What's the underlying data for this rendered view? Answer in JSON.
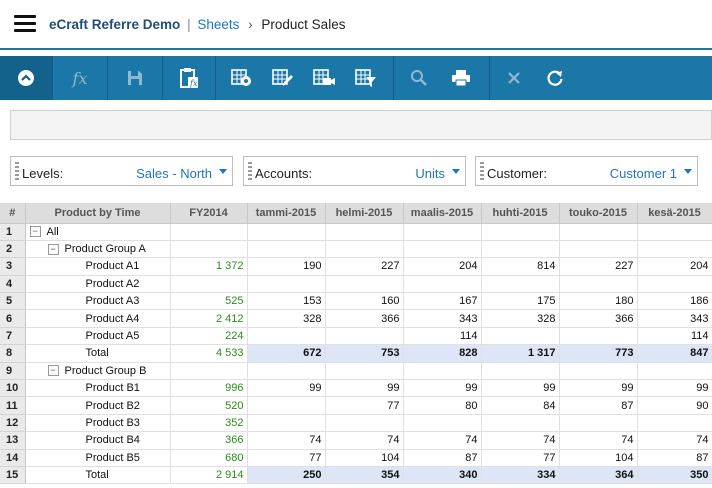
{
  "header": {
    "app_name": "eCraft Referre Demo",
    "separator": "|",
    "breadcrumb_sheets": "Sheets",
    "breadcrumb_arrow": "›",
    "current_sheet": "Product Sales"
  },
  "toolbar": {
    "buttons": [
      {
        "name": "collapse",
        "icon": "chevron-up-icon"
      },
      {
        "name": "formula",
        "icon": "fx-icon",
        "label": "fx"
      },
      {
        "name": "save",
        "icon": "floppy-disk-icon"
      },
      {
        "name": "paste-formula",
        "icon": "clipboard-icon"
      },
      {
        "name": "sheet-settings",
        "icon": "grid-gear-icon"
      },
      {
        "name": "sheet-edit",
        "icon": "grid-pencil-icon"
      },
      {
        "name": "sheet-video",
        "icon": "grid-camera-icon"
      },
      {
        "name": "sheet-filter",
        "icon": "grid-filter-icon"
      },
      {
        "name": "zoom",
        "icon": "magnifier-icon"
      },
      {
        "name": "print",
        "icon": "printer-icon"
      },
      {
        "name": "close",
        "icon": "close-icon"
      },
      {
        "name": "refresh",
        "icon": "refresh-icon"
      }
    ]
  },
  "selectors": [
    {
      "label": "Levels:",
      "value": "Sales - North"
    },
    {
      "label": "Accounts:",
      "value": "Units"
    },
    {
      "label": "Customer:",
      "value": "Customer 1"
    }
  ],
  "grid": {
    "columns": [
      "#",
      "Product by Time",
      "FY2014",
      "tammi-2015",
      "helmi-2015",
      "maalis-2015",
      "huhti-2015",
      "touko-2015",
      "kesä-2015"
    ],
    "rows": [
      {
        "n": "1",
        "label": "All",
        "level": 0,
        "toggle": "−",
        "total": false,
        "values": [
          "",
          "",
          "",
          "",
          "",
          "",
          ""
        ]
      },
      {
        "n": "2",
        "label": "Product Group A",
        "level": 1,
        "toggle": "−",
        "total": false,
        "values": [
          "",
          "",
          "",
          "",
          "",
          "",
          ""
        ]
      },
      {
        "n": "3",
        "label": "Product A1",
        "level": 2,
        "total": false,
        "values": [
          "1 372",
          "190",
          "227",
          "204",
          "814",
          "227",
          "204"
        ]
      },
      {
        "n": "4",
        "label": "Product A2",
        "level": 2,
        "total": false,
        "values": [
          "",
          "",
          "",
          "",
          "",
          "",
          ""
        ]
      },
      {
        "n": "5",
        "label": "Product A3",
        "level": 2,
        "total": false,
        "values": [
          "525",
          "153",
          "160",
          "167",
          "175",
          "180",
          "186"
        ]
      },
      {
        "n": "6",
        "label": "Product A4",
        "level": 2,
        "total": false,
        "values": [
          "2 412",
          "328",
          "366",
          "343",
          "328",
          "366",
          "343"
        ]
      },
      {
        "n": "7",
        "label": "Product A5",
        "level": 2,
        "total": false,
        "values": [
          "224",
          "",
          "",
          "114",
          "",
          "",
          "114"
        ]
      },
      {
        "n": "8",
        "label": "Total",
        "level": 2,
        "total": true,
        "values": [
          "4 533",
          "672",
          "753",
          "828",
          "1 317",
          "773",
          "847"
        ]
      },
      {
        "n": "9",
        "label": "Product Group B",
        "level": 1,
        "toggle": "−",
        "total": false,
        "values": [
          "",
          "",
          "",
          "",
          "",
          "",
          ""
        ]
      },
      {
        "n": "10",
        "label": "Product B1",
        "level": 2,
        "total": false,
        "values": [
          "996",
          "99",
          "99",
          "99",
          "99",
          "99",
          "99"
        ]
      },
      {
        "n": "11",
        "label": "Product B2",
        "level": 2,
        "total": false,
        "values": [
          "520",
          "",
          "77",
          "80",
          "84",
          "87",
          "90"
        ]
      },
      {
        "n": "12",
        "label": "Product B3",
        "level": 2,
        "total": false,
        "values": [
          "352",
          "",
          "",
          "",
          "",
          "",
          ""
        ]
      },
      {
        "n": "13",
        "label": "Product B4",
        "level": 2,
        "total": false,
        "values": [
          "366",
          "74",
          "74",
          "74",
          "74",
          "74",
          "74"
        ]
      },
      {
        "n": "14",
        "label": "Product B5",
        "level": 2,
        "total": false,
        "values": [
          "680",
          "77",
          "104",
          "87",
          "77",
          "104",
          "87"
        ]
      },
      {
        "n": "15",
        "label": "Total",
        "level": 2,
        "total": true,
        "values": [
          "2 914",
          "250",
          "354",
          "340",
          "334",
          "364",
          "350"
        ]
      }
    ]
  }
}
